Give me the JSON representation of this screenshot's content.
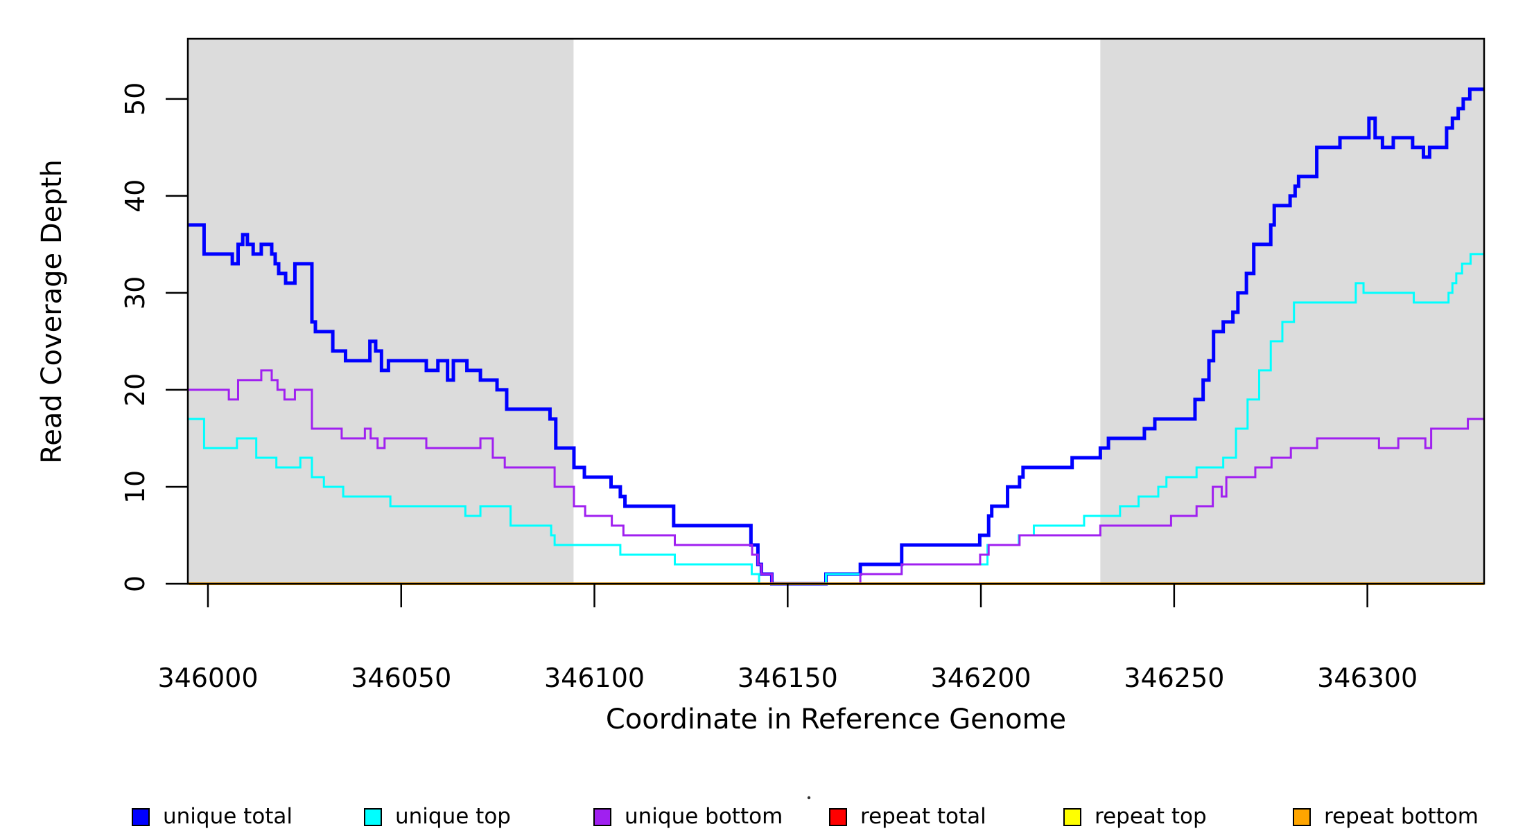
{
  "chart_data": {
    "type": "line",
    "subtype": "step-after",
    "title": "",
    "xlabel": "Coordinate in Reference Genome",
    "ylabel": "Read Coverage Depth",
    "xlim": [
      345994.8,
      346330.2
    ],
    "ylim": [
      0,
      56.2
    ],
    "grid": false,
    "legend_position": "bottom",
    "x_ticks": [
      {
        "v": 346000,
        "label": "346000"
      },
      {
        "v": 346050,
        "label": "346050"
      },
      {
        "v": 346100,
        "label": "346100"
      },
      {
        "v": 346150,
        "label": "346150"
      },
      {
        "v": 346200,
        "label": "346200"
      },
      {
        "v": 346250,
        "label": "346250"
      },
      {
        "v": 346300,
        "label": "346300"
      }
    ],
    "y_ticks": [
      {
        "v": 0,
        "label": "0"
      },
      {
        "v": 10,
        "label": "10"
      },
      {
        "v": 20,
        "label": "20"
      },
      {
        "v": 30,
        "label": "30"
      },
      {
        "v": 40,
        "label": "40"
      },
      {
        "v": 50,
        "label": "50"
      }
    ],
    "shaded_regions": [
      {
        "from": 345994.8,
        "to": 346094.6,
        "color": "#DCDCDC"
      },
      {
        "from": 346230.9,
        "to": 346330.2,
        "color": "#DCDCDC"
      }
    ],
    "series": [
      {
        "name": "unique total",
        "color": "#0000FF",
        "width": 5,
        "points": [
          [
            345995,
            37
          ],
          [
            345999,
            34
          ],
          [
            346006.3,
            33
          ],
          [
            346007.8,
            35
          ],
          [
            346009,
            36
          ],
          [
            346010.2,
            35
          ],
          [
            346011.7,
            34
          ],
          [
            346013.8,
            35
          ],
          [
            346016.5,
            34
          ],
          [
            346017.4,
            33
          ],
          [
            346018.3,
            32
          ],
          [
            346020.1,
            31
          ],
          [
            346022.5,
            33
          ],
          [
            346026.9,
            27
          ],
          [
            346027.8,
            26
          ],
          [
            346032.3,
            24
          ],
          [
            346035.6,
            23
          ],
          [
            346041.9,
            25
          ],
          [
            346043.4,
            24
          ],
          [
            346044.9,
            22
          ],
          [
            346046.7,
            23
          ],
          [
            346056.5,
            22
          ],
          [
            346059.5,
            23
          ],
          [
            346062,
            21
          ],
          [
            346063.5,
            23
          ],
          [
            346067,
            22
          ],
          [
            346070.5,
            21
          ],
          [
            346074.8,
            20
          ],
          [
            346077.3,
            18
          ],
          [
            346088.5,
            17
          ],
          [
            346090,
            14
          ],
          [
            346094.7,
            12
          ],
          [
            346097.4,
            11
          ],
          [
            346104.3,
            10
          ],
          [
            346106.7,
            9
          ],
          [
            346107.9,
            8
          ],
          [
            346120.5,
            6
          ],
          [
            346140.5,
            4
          ],
          [
            346142.3,
            2
          ],
          [
            346143.2,
            1
          ],
          [
            346145.9,
            0
          ],
          [
            346159.9,
            1
          ],
          [
            346168.8,
            2
          ],
          [
            346179.5,
            4
          ],
          [
            346199.7,
            5
          ],
          [
            346202,
            7
          ],
          [
            346202.8,
            8
          ],
          [
            346206.9,
            10
          ],
          [
            346210,
            11
          ],
          [
            346210.9,
            12
          ],
          [
            346223.6,
            13
          ],
          [
            346230.9,
            14
          ],
          [
            346233,
            15
          ],
          [
            346242.3,
            16
          ],
          [
            346245,
            17
          ],
          [
            346255.4,
            19
          ],
          [
            346257.5,
            21
          ],
          [
            346259,
            23
          ],
          [
            346260.2,
            26
          ],
          [
            346262.7,
            27
          ],
          [
            346265.2,
            28
          ],
          [
            346266.5,
            30
          ],
          [
            346268.7,
            32
          ],
          [
            346270.6,
            35
          ],
          [
            346275,
            37
          ],
          [
            346275.9,
            39
          ],
          [
            346280,
            40
          ],
          [
            346281.3,
            41
          ],
          [
            346282.2,
            42
          ],
          [
            346286.9,
            45
          ],
          [
            346292.9,
            46
          ],
          [
            346300.4,
            48
          ],
          [
            346302,
            46
          ],
          [
            346303.9,
            45
          ],
          [
            346306.7,
            46
          ],
          [
            346311.7,
            45
          ],
          [
            346314.5,
            44
          ],
          [
            346316.1,
            45
          ],
          [
            346320.5,
            47
          ],
          [
            346322,
            48
          ],
          [
            346323.5,
            49
          ],
          [
            346324.8,
            50
          ],
          [
            346326.5,
            51
          ]
        ]
      },
      {
        "name": "unique top",
        "color": "#00FFFF",
        "width": 3,
        "points": [
          [
            345995,
            17
          ],
          [
            345999,
            14
          ],
          [
            346007.5,
            15
          ],
          [
            346012.5,
            13
          ],
          [
            346017.7,
            12
          ],
          [
            346023.9,
            13
          ],
          [
            346026.9,
            11
          ],
          [
            346030,
            10
          ],
          [
            346035,
            9
          ],
          [
            346047.2,
            8
          ],
          [
            346066.6,
            7
          ],
          [
            346070.5,
            8
          ],
          [
            346078.3,
            6
          ],
          [
            346088.8,
            5
          ],
          [
            346089.7,
            4
          ],
          [
            346106.7,
            3
          ],
          [
            346120.8,
            2
          ],
          [
            346140.7,
            1
          ],
          [
            346142.6,
            0
          ],
          [
            346159.9,
            1
          ],
          [
            346179.5,
            2
          ],
          [
            346201.7,
            4
          ],
          [
            346209.8,
            5
          ],
          [
            346213.7,
            6
          ],
          [
            346226.7,
            7
          ],
          [
            346236,
            8
          ],
          [
            346240.8,
            9
          ],
          [
            346245.9,
            10
          ],
          [
            346248,
            11
          ],
          [
            346255.8,
            12
          ],
          [
            346262.7,
            13
          ],
          [
            346266,
            16
          ],
          [
            346269,
            19
          ],
          [
            346272,
            22
          ],
          [
            346275,
            25
          ],
          [
            346278,
            27
          ],
          [
            346281,
            29
          ],
          [
            346297,
            31
          ],
          [
            346299,
            30
          ],
          [
            346312,
            29
          ],
          [
            346321,
            30
          ],
          [
            346322,
            31
          ],
          [
            346323,
            32
          ],
          [
            346324.5,
            33
          ],
          [
            346326.7,
            34
          ]
        ]
      },
      {
        "name": "unique bottom",
        "color": "#A020F0",
        "width": 3,
        "points": [
          [
            345995,
            20
          ],
          [
            346005.4,
            19
          ],
          [
            346007.8,
            21
          ],
          [
            346013.8,
            22
          ],
          [
            346016.5,
            21
          ],
          [
            346018,
            20
          ],
          [
            346019.8,
            19
          ],
          [
            346022.5,
            20
          ],
          [
            346026.9,
            16
          ],
          [
            346034.6,
            15
          ],
          [
            346040.6,
            16
          ],
          [
            346042.1,
            15
          ],
          [
            346043.9,
            14
          ],
          [
            346045.7,
            15
          ],
          [
            346056.5,
            14
          ],
          [
            346070.5,
            15
          ],
          [
            346073.7,
            13
          ],
          [
            346076.8,
            12
          ],
          [
            346089.7,
            10
          ],
          [
            346094.7,
            8
          ],
          [
            346097.6,
            7
          ],
          [
            346104.5,
            6
          ],
          [
            346107.5,
            5
          ],
          [
            346120.8,
            4
          ],
          [
            346140.8,
            3
          ],
          [
            346142.3,
            2
          ],
          [
            346143.2,
            1
          ],
          [
            346145.9,
            0
          ],
          [
            346168.8,
            1
          ],
          [
            346179.5,
            2
          ],
          [
            346199.8,
            3
          ],
          [
            346202,
            4
          ],
          [
            346210,
            5
          ],
          [
            346230.9,
            6
          ],
          [
            346249.2,
            7
          ],
          [
            346255.8,
            8
          ],
          [
            346260,
            10
          ],
          [
            346262.3,
            9
          ],
          [
            346263.5,
            11
          ],
          [
            346271,
            12
          ],
          [
            346275.2,
            13
          ],
          [
            346280.2,
            14
          ],
          [
            346287,
            15
          ],
          [
            346303,
            14
          ],
          [
            346308,
            15
          ],
          [
            346315,
            14
          ],
          [
            346316.5,
            16
          ],
          [
            346326,
            17
          ]
        ]
      },
      {
        "name": "repeat total",
        "color": "#FF0000",
        "width": 3,
        "points": [
          [
            345995,
            0
          ]
        ]
      },
      {
        "name": "repeat top",
        "color": "#FFFF00",
        "width": 3,
        "points": [
          [
            345995,
            0
          ]
        ]
      },
      {
        "name": "repeat bottom",
        "color": "#FFA500",
        "width": 4,
        "points": [
          [
            345995,
            0
          ]
        ]
      }
    ]
  },
  "legend": {
    "items": [
      {
        "label": "unique total",
        "color": "#0000FF"
      },
      {
        "label": "unique top",
        "color": "#00FFFF"
      },
      {
        "label": "unique bottom",
        "color": "#A020F0"
      },
      {
        "label": "repeat total",
        "color": "#FF0000"
      },
      {
        "label": "repeat top",
        "color": "#FFFF00"
      },
      {
        "label": "repeat bottom",
        "color": "#FFA500"
      }
    ]
  },
  "colors": {
    "shading": "#DCDCDC",
    "axis": "#000000",
    "background": "#FFFFFF"
  }
}
